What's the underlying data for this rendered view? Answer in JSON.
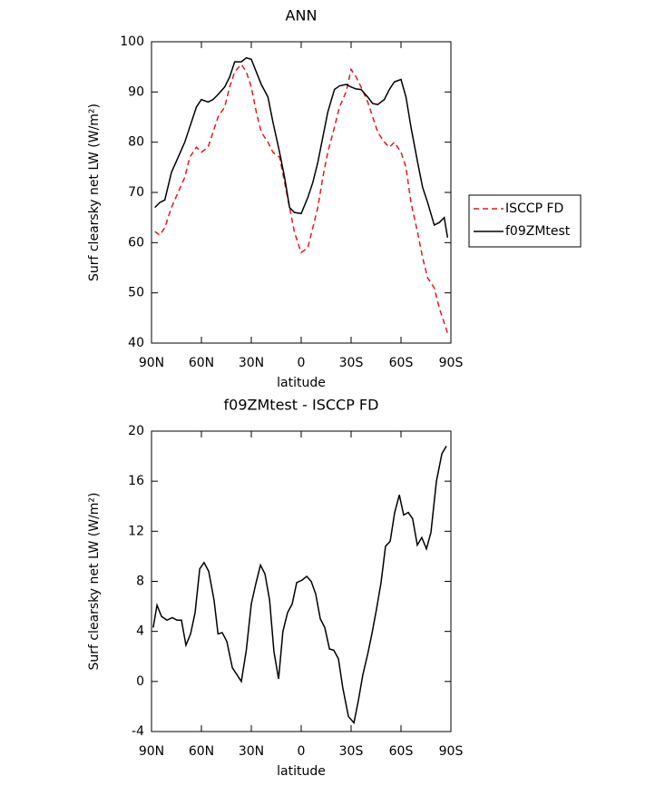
{
  "chart_data": [
    {
      "type": "line",
      "title": "ANN",
      "xlabel": "latitude",
      "ylabel": "Surf clearsky net LW (W/m²)",
      "x": [
        88,
        85,
        82,
        78,
        74,
        70,
        67,
        63,
        60,
        56,
        53,
        50,
        46,
        43,
        40,
        36,
        33,
        30,
        27,
        24,
        20,
        17,
        13,
        10,
        7,
        4,
        0,
        -4,
        -7,
        -10,
        -13,
        -16,
        -20,
        -23,
        -27,
        -30,
        -33,
        -36,
        -40,
        -43,
        -46,
        -50,
        -53,
        -56,
        -60,
        -63,
        -66,
        -70,
        -73,
        -76,
        -80,
        -83,
        -86,
        -88
      ],
      "series": [
        {
          "name": "ISCCP FD",
          "color": "#e41a1c",
          "dash": true,
          "values": [
            62.2,
            61.5,
            63,
            67,
            70,
            73,
            77,
            79,
            78,
            79,
            82,
            85,
            87,
            91,
            94,
            95.5,
            94,
            91,
            86,
            82,
            80,
            78,
            77,
            72,
            67,
            62,
            58,
            59,
            63,
            67,
            73,
            78,
            83,
            87,
            90,
            94.5,
            93,
            91,
            88,
            85,
            82,
            80,
            79,
            80,
            78,
            75,
            68,
            62,
            57,
            53,
            51,
            47,
            44,
            42
          ]
        },
        {
          "name": "f09ZMtest",
          "color": "#000000",
          "dash": false,
          "values": [
            67,
            68,
            68.5,
            74,
            77,
            80,
            83,
            87,
            88.5,
            88,
            88.5,
            89.5,
            91,
            93,
            96,
            96,
            96.8,
            96.5,
            94,
            91.5,
            89,
            84,
            78,
            73,
            67,
            66,
            65.8,
            69,
            72,
            76,
            81,
            86,
            90.5,
            91.2,
            91.5,
            91,
            90.6,
            90.5,
            89,
            87.7,
            87.5,
            88.5,
            90.5,
            92,
            92.5,
            89,
            83,
            76,
            71,
            68,
            63.5,
            64,
            65,
            61
          ]
        }
      ],
      "xlim": [
        90,
        -90
      ],
      "xticks": [
        {
          "value": 90,
          "label": "90N"
        },
        {
          "value": 60,
          "label": "60N"
        },
        {
          "value": 30,
          "label": "30N"
        },
        0,
        {
          "value": -30,
          "label": "30S"
        },
        {
          "value": -60,
          "label": "60S"
        },
        {
          "value": -90,
          "label": "90S"
        }
      ],
      "ylim": [
        40,
        100
      ],
      "yticks": [
        40,
        50,
        60,
        70,
        80,
        90,
        100
      ],
      "legend": "right"
    },
    {
      "type": "line",
      "title": "f09ZMtest - ISCCP FD",
      "xlabel": "latitude",
      "ylabel": "Surf clearsky net LW (W/m²)",
      "x": [
        89,
        86.7,
        84,
        80.7,
        77.5,
        74.7,
        72,
        69.3,
        66.5,
        63.8,
        61,
        58.4,
        55.6,
        52.4,
        50,
        47.5,
        44.7,
        41.4,
        36,
        33,
        30,
        27.3,
        24.5,
        21.8,
        19,
        16.4,
        13.6,
        11,
        8.2,
        5.4,
        2.7,
        -0.6,
        -3.3,
        -6,
        -8.7,
        -11.5,
        -14.2,
        -17,
        -19.6,
        -22.4,
        -25,
        -28.4,
        -31.7,
        -34.4,
        -37,
        -40,
        -42.5,
        -45.3,
        -48,
        -50.7,
        -53.5,
        -56.2,
        -59,
        -61.6,
        -64.4,
        -67,
        -69.8,
        -72.5,
        -75.3,
        -78,
        -81.3,
        -84.6,
        -87.3
      ],
      "series": [
        {
          "name": "f09ZMtest - ISCCP FD",
          "color": "#000000",
          "dash": false,
          "values": [
            4.3,
            6.1,
            5.2,
            4.9,
            5.1,
            4.9,
            4.9,
            2.9,
            3.8,
            5.5,
            9,
            9.5,
            8.8,
            6.5,
            3.8,
            3.9,
            3.2,
            1.1,
            0,
            2.5,
            6.2,
            7.8,
            9.3,
            8.6,
            6.5,
            2.4,
            0.2,
            4,
            5.5,
            6.2,
            7.9,
            8.1,
            8.4,
            8,
            7,
            5,
            4.3,
            2.6,
            2.5,
            1.8,
            -0.5,
            -2.8,
            -3.3,
            -1.5,
            0.5,
            2.2,
            3.8,
            5.8,
            7.9,
            10.8,
            11.2,
            13.5,
            14.9,
            13.3,
            13.5,
            13,
            10.9,
            11.5,
            10.6,
            11.9,
            16,
            18.2,
            18.8
          ]
        }
      ],
      "xlim": [
        90,
        -90
      ],
      "xticks": [
        {
          "value": 90,
          "label": "90N"
        },
        {
          "value": 60,
          "label": "60N"
        },
        {
          "value": 30,
          "label": "30N"
        },
        0,
        {
          "value": -30,
          "label": "30S"
        },
        {
          "value": -60,
          "label": "60S"
        },
        {
          "value": -90,
          "label": "90S"
        }
      ],
      "ylim": [
        -4,
        20
      ],
      "yticks": [
        -4,
        0,
        4,
        8,
        12,
        16,
        20
      ]
    }
  ]
}
